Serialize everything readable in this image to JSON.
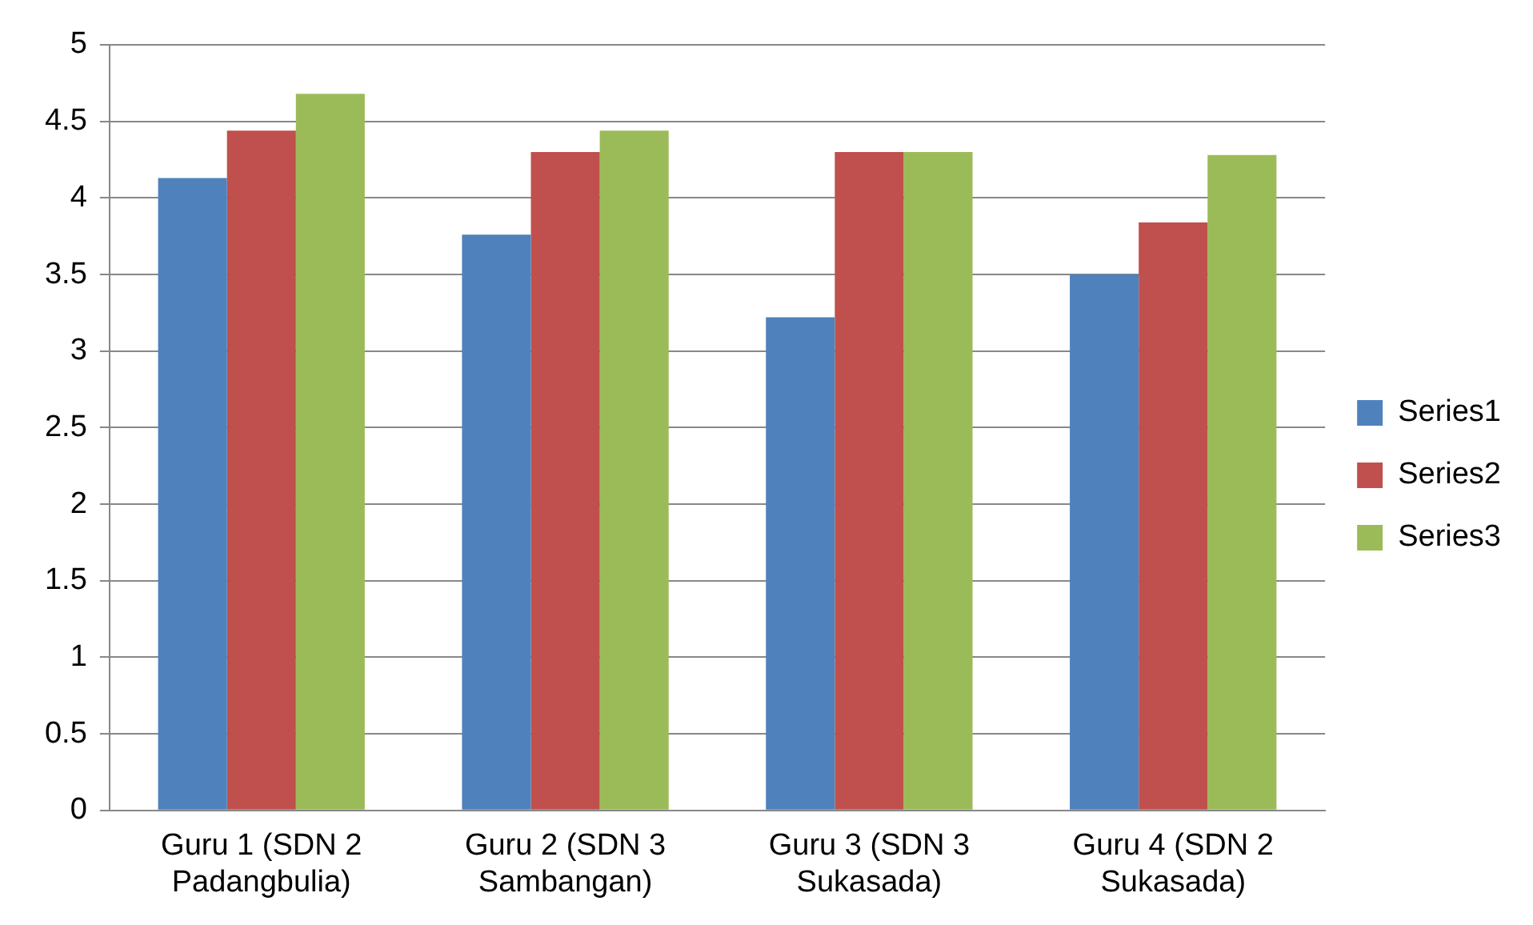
{
  "chart_data": {
    "type": "bar",
    "categories": [
      "Guru 1 (SDN 2 Padangbulia)",
      "Guru 2 (SDN 3 Sambangan)",
      "Guru 3 (SDN 3 Sukasada)",
      "Guru 4 (SDN 2 Sukasada)"
    ],
    "series": [
      {
        "name": "Series1",
        "color": "#4f81bd",
        "values": [
          4.13,
          3.76,
          3.22,
          3.5
        ]
      },
      {
        "name": "Series2",
        "color": "#c0504d",
        "values": [
          4.44,
          4.3,
          4.3,
          3.84
        ]
      },
      {
        "name": "Series3",
        "color": "#9bbb59",
        "values": [
          4.68,
          4.44,
          4.3,
          4.28
        ]
      }
    ],
    "ylim": [
      0,
      5
    ],
    "yticks": [
      0,
      0.5,
      1,
      1.5,
      2,
      2.5,
      3,
      3.5,
      4,
      4.5,
      5
    ],
    "grid": "y",
    "legend": "right"
  }
}
